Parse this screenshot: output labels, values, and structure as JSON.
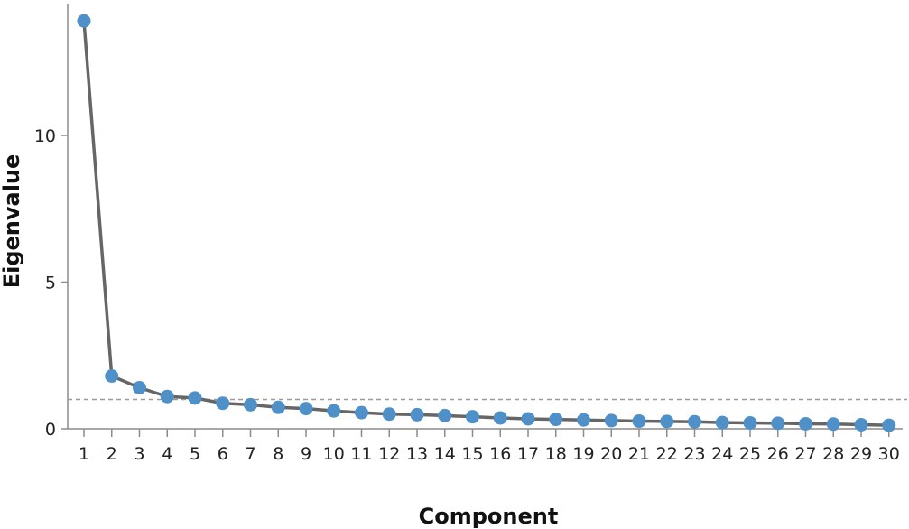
{
  "chart_data": {
    "type": "line",
    "xlabel": "Component",
    "ylabel": "Eigenvalue",
    "ylim": [
      0,
      14
    ],
    "yticks": [
      0,
      5,
      10
    ],
    "reference_line": 1,
    "grid": false,
    "x": [
      1,
      2,
      3,
      4,
      5,
      6,
      7,
      8,
      9,
      10,
      11,
      12,
      13,
      14,
      15,
      16,
      17,
      18,
      19,
      20,
      21,
      22,
      23,
      24,
      25,
      26,
      27,
      28,
      29,
      30
    ],
    "xtick_labels": [
      "1",
      "2",
      "3",
      "4",
      "5",
      "6",
      "7",
      "8",
      "9",
      "10",
      "11",
      "12",
      "13",
      "14",
      "15",
      "16",
      "17",
      "18",
      "19",
      "20",
      "21",
      "22",
      "23",
      "24",
      "25",
      "26",
      "27",
      "28",
      "29",
      "30"
    ],
    "ytick_labels": [
      "0",
      "5",
      "10"
    ],
    "series": [
      {
        "values": [
          13.9,
          1.8,
          1.4,
          1.1,
          1.05,
          0.87,
          0.82,
          0.73,
          0.69,
          0.61,
          0.55,
          0.5,
          0.48,
          0.45,
          0.41,
          0.37,
          0.34,
          0.32,
          0.3,
          0.28,
          0.26,
          0.25,
          0.24,
          0.21,
          0.2,
          0.19,
          0.17,
          0.16,
          0.14,
          0.12
        ]
      }
    ],
    "colors": {
      "line": "#666666",
      "marker": "#4f90c9",
      "axis": "#8c8c8c",
      "reference": "#9a9a9a"
    }
  }
}
